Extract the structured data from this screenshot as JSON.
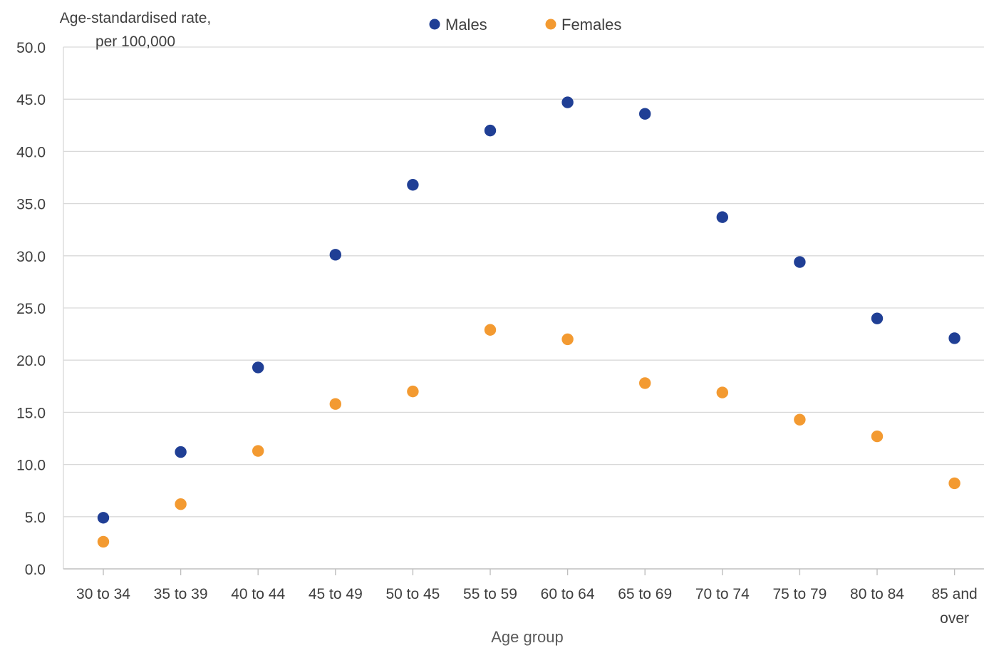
{
  "chart_data": {
    "type": "scatter",
    "ylabel_lines": [
      "Age-standardised rate,",
      "per 100,000"
    ],
    "xlabel": "Age group",
    "ylim": [
      0,
      50
    ],
    "y_ticks": [
      "0.0",
      "5.0",
      "10.0",
      "15.0",
      "20.0",
      "25.0",
      "30.0",
      "35.0",
      "40.0",
      "45.0",
      "50.0"
    ],
    "grid": true,
    "legend_position": "top",
    "categories": [
      [
        "30 to 34"
      ],
      [
        "35 to 39"
      ],
      [
        "40 to 44"
      ],
      [
        "45 to 49"
      ],
      [
        "50 to 45"
      ],
      [
        "55 to 59"
      ],
      [
        "60 to 64"
      ],
      [
        "65 to 69"
      ],
      [
        "70 to 74"
      ],
      [
        "75 to 79"
      ],
      [
        "80 to 84"
      ],
      [
        "85 and",
        "over"
      ]
    ],
    "series": [
      {
        "name": "Males",
        "color": "#203f95",
        "values": [
          4.9,
          11.2,
          19.3,
          30.1,
          36.8,
          42.0,
          44.7,
          43.6,
          33.7,
          29.4,
          24.0,
          22.1
        ]
      },
      {
        "name": "Females",
        "color": "#f39a31",
        "values": [
          2.6,
          6.2,
          11.3,
          15.8,
          17.0,
          22.9,
          22.0,
          17.8,
          16.9,
          14.3,
          12.7,
          8.2
        ]
      }
    ]
  }
}
